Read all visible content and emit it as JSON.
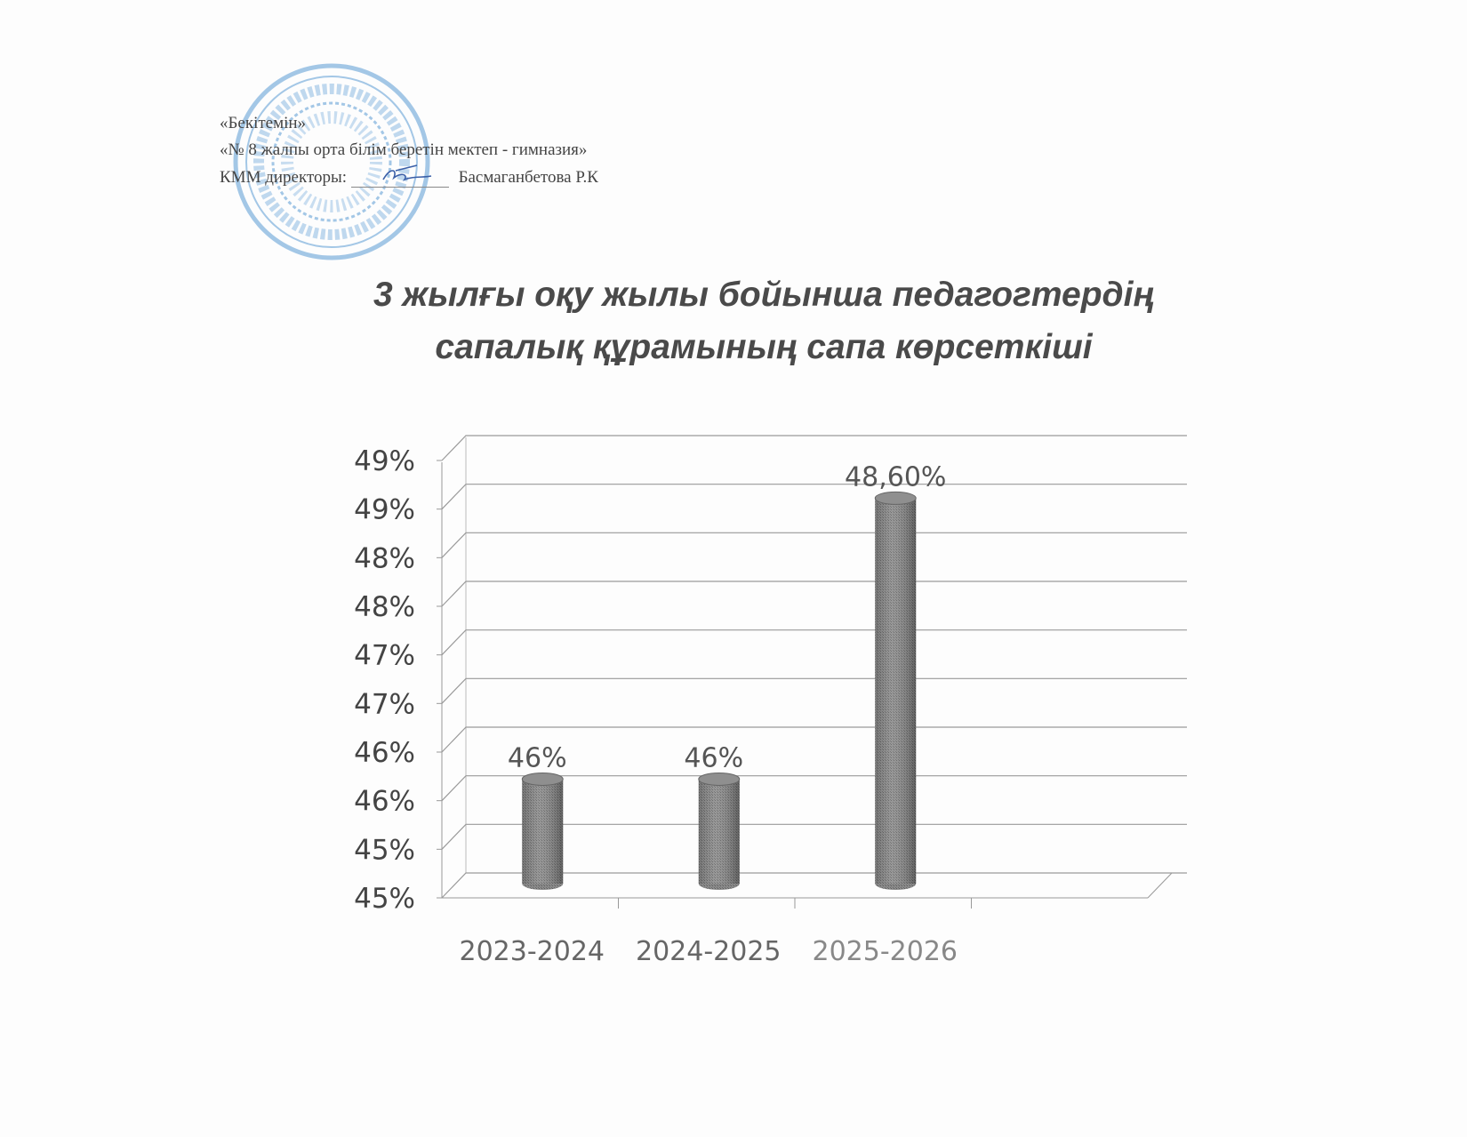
{
  "approval": {
    "line1": "«Бекітемін»",
    "line2": "«№ 8 жалпы орта білім беретін мектеп - гимназия»",
    "line3_prefix": "КММ  директоры:",
    "line3_name": "Басмаганбетова Р.К"
  },
  "stamp": {
    "color": "#5b9bd5"
  },
  "chart_data": {
    "type": "bar",
    "style": "3d-cylinder",
    "title_lines": [
      "3 жылғы оқу жылы бойынша педагогтердің",
      "сапалық құрамының  сапа көрсеткіші"
    ],
    "categories": [
      "2023-2024",
      "2024-2025",
      "2025-2026"
    ],
    "values": [
      46,
      46,
      48.6
    ],
    "data_labels": [
      "46%",
      "46%",
      "48,60%"
    ],
    "y_tick_labels": [
      "45%",
      "45%",
      "46%",
      "46%",
      "47%",
      "47%",
      "48%",
      "48%",
      "49%",
      "49%"
    ],
    "ylim": [
      45,
      49.5
    ],
    "xlabel": "",
    "ylabel": "",
    "grid": true,
    "legend": "none",
    "bar_color": "#777777"
  }
}
